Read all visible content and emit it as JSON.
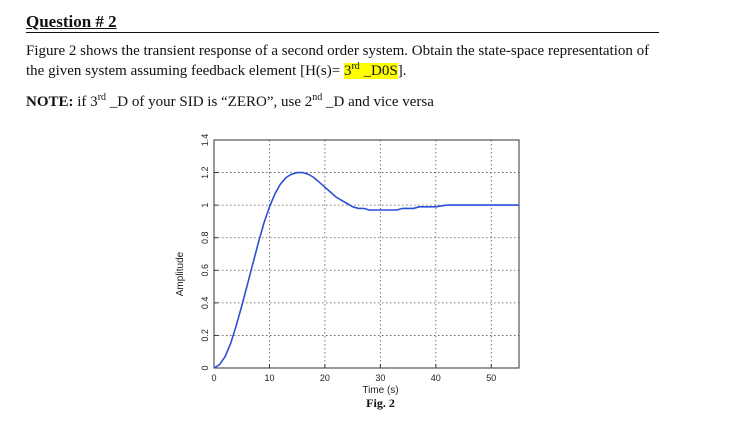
{
  "question": {
    "title": "Question # 2",
    "paragraph_line1": "Figure 2 shows the transient response of a second order system. Obtain the state-space representation of",
    "paragraph_line2_prefix": "the given system assuming feedback element [H(s)= ",
    "paragraph_line2_highlight_num": "3",
    "paragraph_line2_highlight_sup": "rd",
    "paragraph_line2_highlight_rest": " _D0S",
    "paragraph_line2_suffix": "].",
    "note_label": "NOTE:",
    "note_part1": " if 3",
    "note_sup1": "rd",
    "note_part2": " _D of your SID is “ZERO”, use 2",
    "note_sup2": "nd",
    "note_part3": " _D and vice versa"
  },
  "chart_data": {
    "type": "line",
    "title": "",
    "xlabel": "Time (s)",
    "ylabel": "Amplitude",
    "caption": "Fig. 2",
    "xlim": [
      0,
      55
    ],
    "ylim": [
      0,
      1.4
    ],
    "x_ticks": [
      "0",
      "10",
      "20",
      "30",
      "40",
      "50"
    ],
    "y_ticks": [
      "0",
      "0.2",
      "0.4",
      "0.6",
      "0.8",
      "1",
      "1.2",
      "1.4"
    ],
    "grid": true,
    "color": "#2b4fd8",
    "series": [
      {
        "x": [
          0,
          1,
          2,
          3,
          4,
          5,
          6,
          7,
          8,
          9,
          10,
          11,
          12,
          13,
          14,
          15,
          16,
          17,
          18,
          19,
          20,
          21,
          22,
          23,
          24,
          25,
          26,
          27,
          28,
          29,
          30,
          31,
          32,
          33,
          34,
          35,
          36,
          37,
          38,
          39,
          40,
          42,
          44,
          46,
          48,
          50,
          52,
          55
        ],
        "y": [
          0,
          0.02,
          0.07,
          0.15,
          0.26,
          0.38,
          0.51,
          0.64,
          0.77,
          0.89,
          0.99,
          1.07,
          1.13,
          1.17,
          1.19,
          1.2,
          1.2,
          1.19,
          1.17,
          1.14,
          1.11,
          1.08,
          1.05,
          1.03,
          1.01,
          0.99,
          0.98,
          0.98,
          0.97,
          0.97,
          0.97,
          0.97,
          0.97,
          0.97,
          0.98,
          0.98,
          0.98,
          0.99,
          0.99,
          0.99,
          0.99,
          1.0,
          1.0,
          1.0,
          1.0,
          1.0,
          1.0,
          1.0
        ]
      }
    ]
  }
}
